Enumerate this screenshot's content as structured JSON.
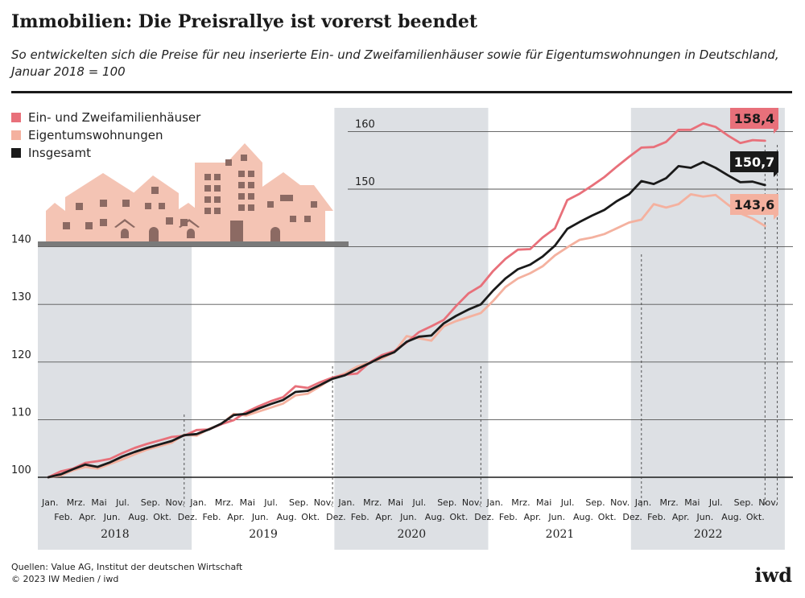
{
  "title": "Immobilien: Die Preisrallye ist vorerst beendet",
  "subtitle": "So entwickelten sich die Preise für neu inserierte Ein- und Zweifamilienhäuser sowie für Eigentumswohnungen in Deutschland, Januar 2018 = 100",
  "footer": {
    "sources": "Quellen: Value AG, Institut der deutschen Wirtschaft",
    "copyright": "© 2023 IW Medien / iwd",
    "logo": "iwd"
  },
  "chart_data": {
    "type": "line",
    "ylim": [
      100,
      160
    ],
    "yticks": [
      100,
      110,
      120,
      130,
      140,
      150,
      160
    ],
    "grid": true,
    "legend_position": "top-left",
    "month_labels": [
      "Jan.",
      "Feb.",
      "Mrz.",
      "Apr.",
      "Mai",
      "Jun.",
      "Jul.",
      "Aug.",
      "Sep.",
      "Okt.",
      "Nov.",
      "Dez."
    ],
    "years": [
      "2018",
      "2019",
      "2020",
      "2021",
      "2022"
    ],
    "series": [
      {
        "name": "Ein- und Zweifamilienhäuser",
        "color": "#e8707a",
        "end_label": "158,4",
        "values": [
          100,
          101,
          101.5,
          102.5,
          102.8,
          103.2,
          104.2,
          105.1,
          105.8,
          106.4,
          107,
          107.2,
          108.2,
          108.3,
          109.2,
          109.9,
          111.3,
          112.3,
          113.2,
          113.9,
          115.8,
          115.5,
          116.5,
          117.3,
          117.8,
          118,
          119.9,
          121.2,
          121.9,
          123.4,
          125.2,
          126.2,
          127.3,
          129.7,
          131.9,
          133.2,
          135.8,
          137.9,
          139.5,
          139.6,
          141.6,
          143.2,
          148.1,
          149.2,
          150.6,
          152.1,
          153.9,
          155.6,
          157.2,
          157.3,
          158.2,
          160.3,
          160.3,
          161.4,
          160.8,
          159.3,
          158,
          158.5,
          158.4
        ]
      },
      {
        "name": "Eigentumswohnungen",
        "color": "#f4b19f",
        "end_label": "143,6",
        "values": [
          100,
          100.3,
          101.2,
          101.8,
          101.5,
          102.3,
          103.1,
          104,
          104.8,
          105.4,
          106,
          107.4,
          107.2,
          108.4,
          109.2,
          111,
          110.7,
          111.4,
          112.1,
          112.8,
          114.2,
          114.5,
          115.8,
          117.2,
          118,
          119.2,
          119.9,
          120.6,
          121.7,
          124.5,
          124.1,
          123.7,
          126.2,
          127.1,
          127.8,
          128.5,
          130.6,
          133,
          134.5,
          135.4,
          136.6,
          138.5,
          139.9,
          141.2,
          141.6,
          142.2,
          143.2,
          144.2,
          144.7,
          147.4,
          146.8,
          147.4,
          149.1,
          148.7,
          149,
          147.3,
          145.8,
          144.9,
          143.6
        ]
      },
      {
        "name": "Insgesamt",
        "color": "#1a1a1a",
        "end_label": "150,7",
        "values": [
          100,
          100.5,
          101.4,
          102.2,
          101.8,
          102.6,
          103.6,
          104.4,
          105.1,
          105.7,
          106.3,
          107.3,
          107.5,
          108.3,
          109.3,
          110.8,
          111,
          111.9,
          112.7,
          113.4,
          114.8,
          115,
          116,
          117.1,
          117.7,
          118.8,
          119.8,
          120.9,
          121.7,
          123.5,
          124.4,
          124.6,
          126.7,
          128,
          129.1,
          130,
          132.4,
          134.5,
          136.1,
          136.9,
          138.3,
          140.2,
          143.1,
          144.3,
          145.4,
          146.4,
          147.9,
          149.1,
          151.4,
          150.9,
          151.9,
          154,
          153.7,
          154.7,
          153.7,
          152.4,
          151.2,
          151.3,
          150.7
        ]
      }
    ]
  }
}
